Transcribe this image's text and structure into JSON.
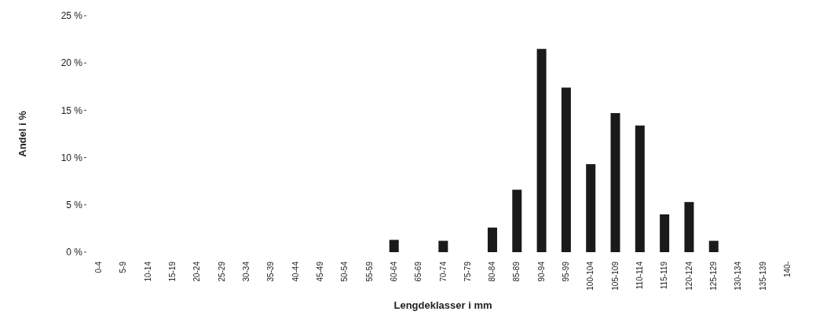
{
  "chart_data": {
    "type": "bar",
    "xlabel": "Lengdeklasser i mm",
    "ylabel": "Andel i %",
    "categories": [
      "0-4",
      "5-9",
      "10-14",
      "15-19",
      "20-24",
      "25-29",
      "30-34",
      "35-39",
      "40-44",
      "45-49",
      "50-54",
      "55-59",
      "60-64",
      "65-69",
      "70-74",
      "75-79",
      "80-84",
      "85-89",
      "90-94",
      "95-99",
      "100-104",
      "105-109",
      "110-114",
      "115-119",
      "120-124",
      "125-129",
      "130-134",
      "135-139",
      "140-"
    ],
    "values": [
      0,
      0,
      0,
      0,
      0,
      0,
      0,
      0,
      0,
      0,
      0,
      0,
      1.3,
      0,
      1.2,
      0,
      2.6,
      6.6,
      21.5,
      17.4,
      9.3,
      14.7,
      13.4,
      4.0,
      5.3,
      1.2,
      0,
      0,
      0
    ],
    "color": "#1a1a1a",
    "ylim": [
      0,
      25
    ],
    "yticks": [
      {
        "value": 0,
        "label": "0 %"
      },
      {
        "value": 5,
        "label": "5 %"
      },
      {
        "value": 10,
        "label": "10 %"
      },
      {
        "value": 15,
        "label": "15 %"
      },
      {
        "value": 20,
        "label": "20 %"
      },
      {
        "value": 25,
        "label": "25 %"
      }
    ]
  }
}
